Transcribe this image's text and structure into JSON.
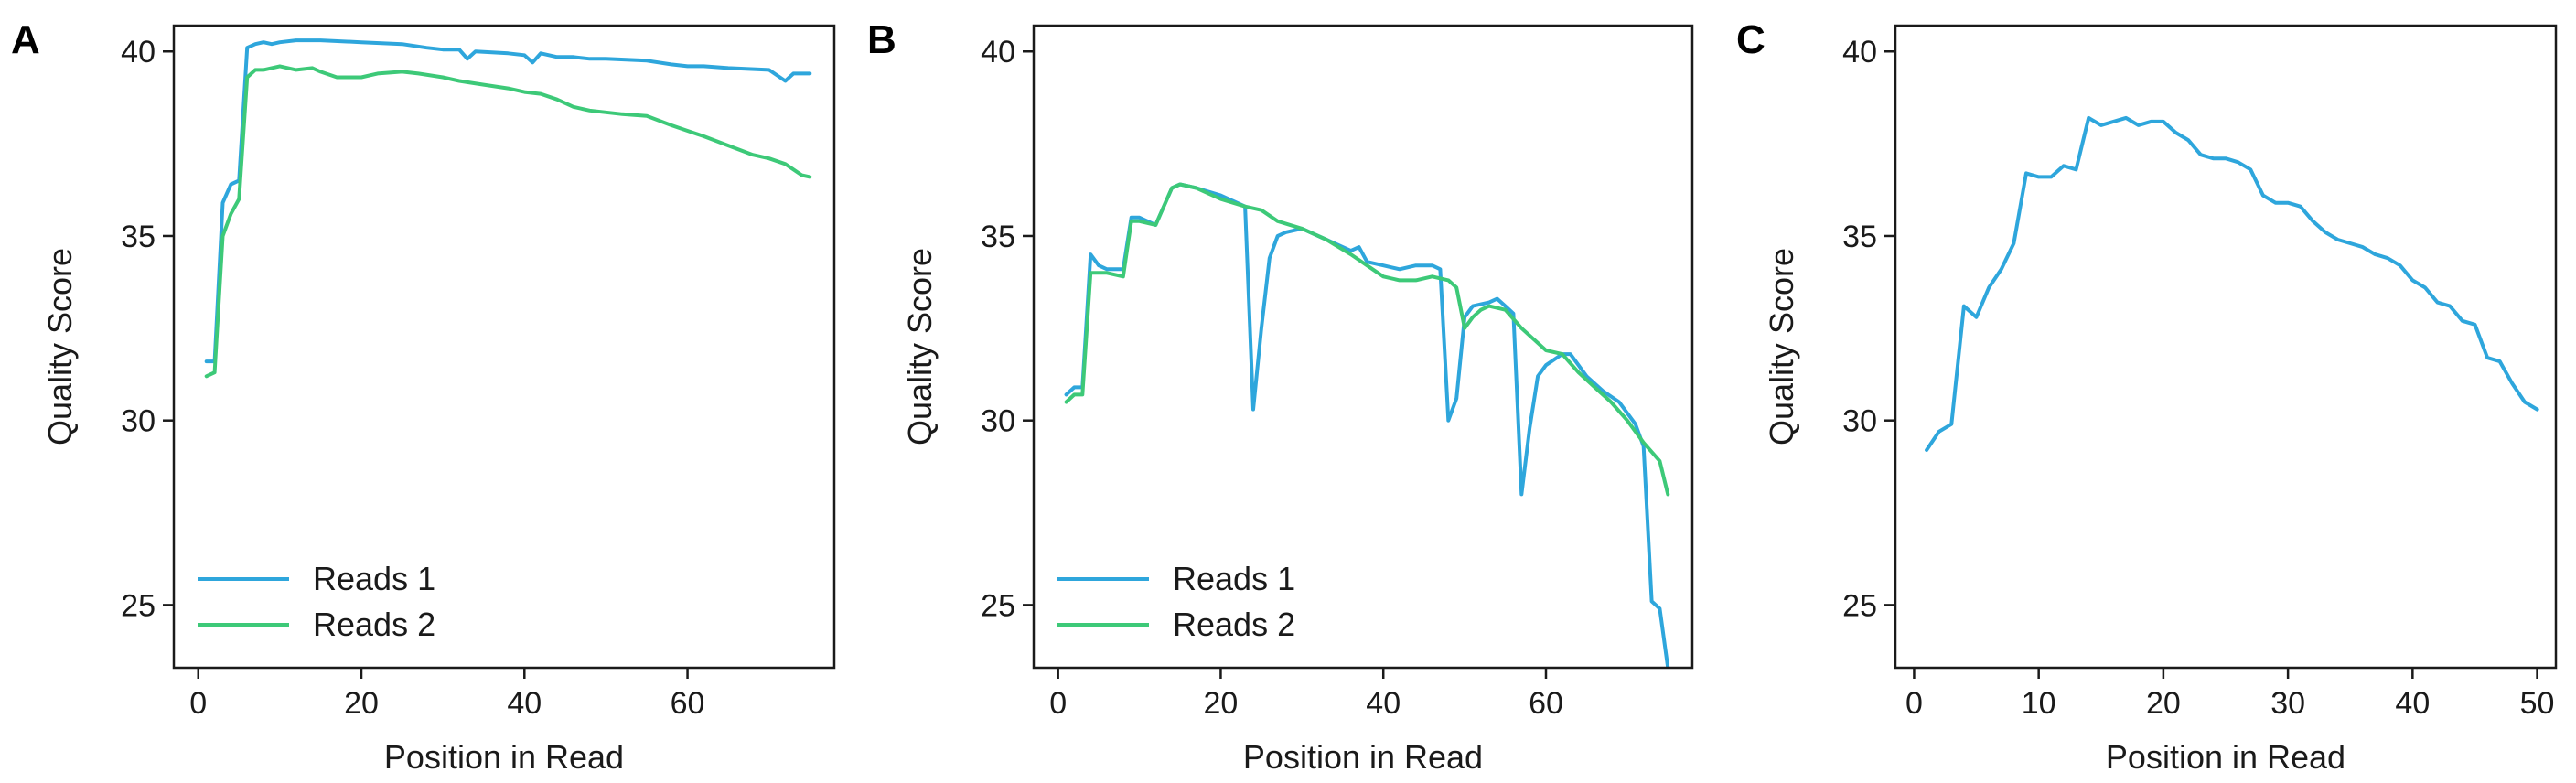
{
  "chart_data": [
    {
      "panel_label": "A",
      "type": "line",
      "xlabel": "Position in Read",
      "ylabel": "Quality Score",
      "xlim": [
        -3,
        78
      ],
      "ylim": [
        23.3,
        40.7
      ],
      "xticks": [
        0,
        20,
        40,
        60
      ],
      "yticks": [
        25,
        30,
        35,
        40
      ],
      "legend": "bottom-left",
      "series": [
        {
          "name": "Reads 1",
          "color": "#2ea6dc",
          "points": [
            [
              1,
              31.6
            ],
            [
              2,
              31.6
            ],
            [
              3,
              35.9
            ],
            [
              4,
              36.4
            ],
            [
              5,
              36.5
            ],
            [
              6,
              40.1
            ],
            [
              7,
              40.2
            ],
            [
              8,
              40.25
            ],
            [
              9,
              40.2
            ],
            [
              10,
              40.25
            ],
            [
              12,
              40.3
            ],
            [
              15,
              40.3
            ],
            [
              20,
              40.25
            ],
            [
              25,
              40.2
            ],
            [
              28,
              40.1
            ],
            [
              30,
              40.05
            ],
            [
              32,
              40.05
            ],
            [
              33,
              39.8
            ],
            [
              34,
              40.0
            ],
            [
              38,
              39.95
            ],
            [
              40,
              39.9
            ],
            [
              41,
              39.7
            ],
            [
              42,
              39.95
            ],
            [
              44,
              39.85
            ],
            [
              46,
              39.85
            ],
            [
              48,
              39.8
            ],
            [
              50,
              39.8
            ],
            [
              55,
              39.75
            ],
            [
              58,
              39.65
            ],
            [
              60,
              39.6
            ],
            [
              62,
              39.6
            ],
            [
              65,
              39.55
            ],
            [
              70,
              39.5
            ],
            [
              72,
              39.2
            ],
            [
              73,
              39.4
            ],
            [
              75,
              39.4
            ]
          ]
        },
        {
          "name": "Reads 2",
          "color": "#3dc978",
          "points": [
            [
              1,
              31.2
            ],
            [
              2,
              31.3
            ],
            [
              3,
              35.0
            ],
            [
              4,
              35.6
            ],
            [
              5,
              36.0
            ],
            [
              6,
              39.3
            ],
            [
              7,
              39.5
            ],
            [
              8,
              39.5
            ],
            [
              10,
              39.6
            ],
            [
              12,
              39.5
            ],
            [
              14,
              39.55
            ],
            [
              15,
              39.45
            ],
            [
              17,
              39.3
            ],
            [
              20,
              39.3
            ],
            [
              22,
              39.4
            ],
            [
              25,
              39.45
            ],
            [
              27,
              39.4
            ],
            [
              30,
              39.3
            ],
            [
              32,
              39.2
            ],
            [
              35,
              39.1
            ],
            [
              38,
              39.0
            ],
            [
              40,
              38.9
            ],
            [
              42,
              38.85
            ],
            [
              44,
              38.7
            ],
            [
              46,
              38.5
            ],
            [
              48,
              38.4
            ],
            [
              50,
              38.35
            ],
            [
              52,
              38.3
            ],
            [
              55,
              38.25
            ],
            [
              58,
              38.0
            ],
            [
              60,
              37.85
            ],
            [
              62,
              37.7
            ],
            [
              65,
              37.45
            ],
            [
              68,
              37.2
            ],
            [
              70,
              37.1
            ],
            [
              72,
              36.95
            ],
            [
              74,
              36.65
            ],
            [
              75,
              36.6
            ]
          ]
        }
      ]
    },
    {
      "panel_label": "B",
      "type": "line",
      "xlabel": "Position in Read",
      "ylabel": "Quality Score",
      "xlim": [
        -3,
        78
      ],
      "ylim": [
        23.3,
        40.7
      ],
      "xticks": [
        0,
        20,
        40,
        60
      ],
      "yticks": [
        25,
        30,
        35,
        40
      ],
      "legend": "bottom-left",
      "series": [
        {
          "name": "Reads 1",
          "color": "#2ea6dc",
          "points": [
            [
              1,
              30.7
            ],
            [
              2,
              30.9
            ],
            [
              3,
              30.9
            ],
            [
              4,
              34.5
            ],
            [
              5,
              34.2
            ],
            [
              6,
              34.1
            ],
            [
              8,
              34.1
            ],
            [
              9,
              35.5
            ],
            [
              10,
              35.5
            ],
            [
              12,
              35.3
            ],
            [
              14,
              36.3
            ],
            [
              15,
              36.4
            ],
            [
              17,
              36.3
            ],
            [
              20,
              36.1
            ],
            [
              23,
              35.8
            ],
            [
              24,
              30.3
            ],
            [
              25,
              32.5
            ],
            [
              26,
              34.4
            ],
            [
              27,
              35.0
            ],
            [
              28,
              35.1
            ],
            [
              30,
              35.2
            ],
            [
              33,
              34.9
            ],
            [
              36,
              34.6
            ],
            [
              37,
              34.7
            ],
            [
              38,
              34.3
            ],
            [
              40,
              34.2
            ],
            [
              42,
              34.1
            ],
            [
              44,
              34.2
            ],
            [
              46,
              34.2
            ],
            [
              47,
              34.1
            ],
            [
              48,
              30.0
            ],
            [
              49,
              30.6
            ],
            [
              50,
              32.8
            ],
            [
              51,
              33.1
            ],
            [
              53,
              33.2
            ],
            [
              54,
              33.3
            ],
            [
              55,
              33.1
            ],
            [
              56,
              32.9
            ],
            [
              57,
              28.0
            ],
            [
              58,
              29.8
            ],
            [
              59,
              31.2
            ],
            [
              60,
              31.5
            ],
            [
              62,
              31.8
            ],
            [
              63,
              31.8
            ],
            [
              65,
              31.2
            ],
            [
              67,
              30.8
            ],
            [
              69,
              30.5
            ],
            [
              71,
              29.9
            ],
            [
              72,
              29.3
            ],
            [
              73,
              25.1
            ],
            [
              74,
              24.9
            ],
            [
              75,
              23.3
            ]
          ]
        },
        {
          "name": "Reads 2",
          "color": "#3dc978",
          "points": [
            [
              1,
              30.5
            ],
            [
              2,
              30.7
            ],
            [
              3,
              30.7
            ],
            [
              4,
              34.0
            ],
            [
              6,
              34.0
            ],
            [
              8,
              33.9
            ],
            [
              9,
              35.4
            ],
            [
              10,
              35.4
            ],
            [
              12,
              35.3
            ],
            [
              14,
              36.3
            ],
            [
              15,
              36.4
            ],
            [
              17,
              36.3
            ],
            [
              20,
              36.0
            ],
            [
              23,
              35.8
            ],
            [
              25,
              35.7
            ],
            [
              27,
              35.4
            ],
            [
              30,
              35.2
            ],
            [
              33,
              34.9
            ],
            [
              36,
              34.5
            ],
            [
              38,
              34.2
            ],
            [
              40,
              33.9
            ],
            [
              42,
              33.8
            ],
            [
              44,
              33.8
            ],
            [
              46,
              33.9
            ],
            [
              48,
              33.8
            ],
            [
              49,
              33.6
            ],
            [
              50,
              32.5
            ],
            [
              51,
              32.8
            ],
            [
              52,
              33.0
            ],
            [
              53,
              33.1
            ],
            [
              55,
              33.0
            ],
            [
              57,
              32.5
            ],
            [
              60,
              31.9
            ],
            [
              62,
              31.8
            ],
            [
              64,
              31.3
            ],
            [
              66,
              30.9
            ],
            [
              68,
              30.5
            ],
            [
              70,
              30.0
            ],
            [
              72,
              29.4
            ],
            [
              74,
              28.9
            ],
            [
              75,
              28.0
            ]
          ]
        }
      ]
    },
    {
      "panel_label": "C",
      "type": "line",
      "xlabel": "Position in Read",
      "ylabel": "Quality Score",
      "xlim": [
        -1.5,
        51.5
      ],
      "ylim": [
        23.3,
        40.7
      ],
      "xticks": [
        0,
        10,
        20,
        30,
        40,
        50
      ],
      "yticks": [
        25,
        30,
        35,
        40
      ],
      "legend": "none",
      "series": [
        {
          "color": "#2ea6dc",
          "points": [
            [
              1,
              29.2
            ],
            [
              2,
              29.7
            ],
            [
              3,
              29.9
            ],
            [
              4,
              33.1
            ],
            [
              5,
              32.8
            ],
            [
              6,
              33.6
            ],
            [
              7,
              34.1
            ],
            [
              8,
              34.8
            ],
            [
              9,
              36.7
            ],
            [
              10,
              36.6
            ],
            [
              11,
              36.6
            ],
            [
              12,
              36.9
            ],
            [
              13,
              36.8
            ],
            [
              14,
              38.2
            ],
            [
              15,
              38.0
            ],
            [
              16,
              38.1
            ],
            [
              17,
              38.2
            ],
            [
              18,
              38.0
            ],
            [
              19,
              38.1
            ],
            [
              20,
              38.1
            ],
            [
              21,
              37.8
            ],
            [
              22,
              37.6
            ],
            [
              23,
              37.2
            ],
            [
              24,
              37.1
            ],
            [
              25,
              37.1
            ],
            [
              26,
              37.0
            ],
            [
              27,
              36.8
            ],
            [
              28,
              36.1
            ],
            [
              29,
              35.9
            ],
            [
              30,
              35.9
            ],
            [
              31,
              35.8
            ],
            [
              32,
              35.4
            ],
            [
              33,
              35.1
            ],
            [
              34,
              34.9
            ],
            [
              35,
              34.8
            ],
            [
              36,
              34.7
            ],
            [
              37,
              34.5
            ],
            [
              38,
              34.4
            ],
            [
              39,
              34.2
            ],
            [
              40,
              33.8
            ],
            [
              41,
              33.6
            ],
            [
              42,
              33.2
            ],
            [
              43,
              33.1
            ],
            [
              44,
              32.7
            ],
            [
              45,
              32.6
            ],
            [
              46,
              31.7
            ],
            [
              47,
              31.6
            ],
            [
              48,
              31.0
            ],
            [
              49,
              30.5
            ],
            [
              50,
              30.3
            ]
          ]
        }
      ]
    }
  ]
}
